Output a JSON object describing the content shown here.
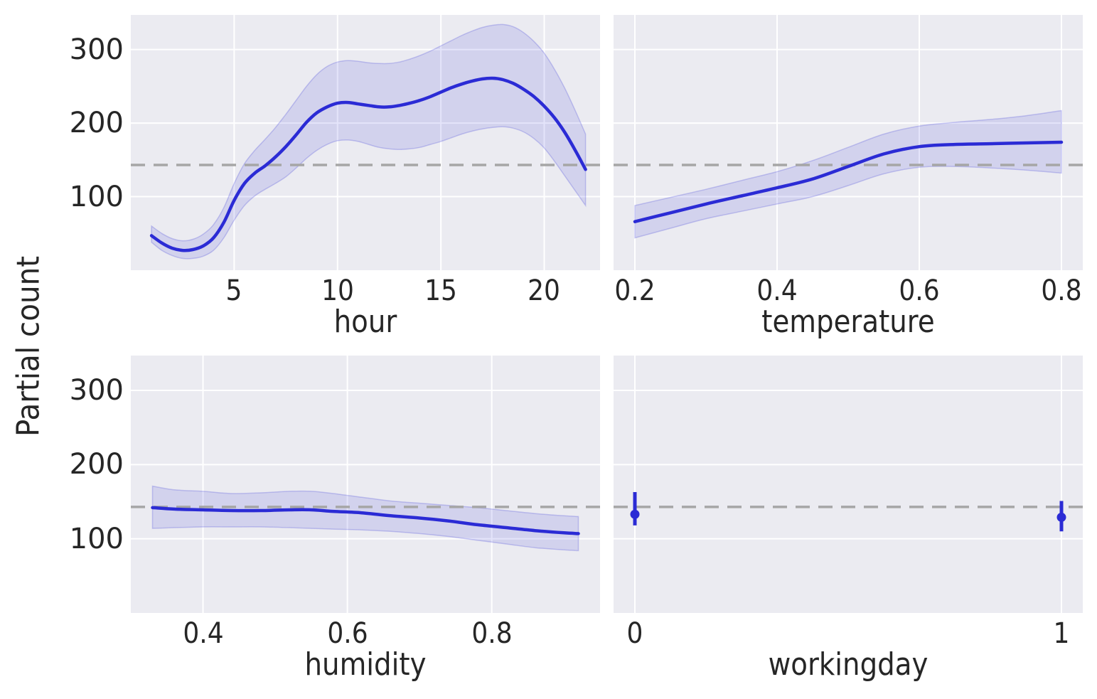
{
  "figure": {
    "ylabel": "Partial count",
    "background": "#ffffff",
    "axes_background": "#ebebf1",
    "gridline_color": "#ffffff",
    "line_color": "#2b2bd5",
    "band_fill": "rgba(43,43,213,0.13)",
    "band_edge": "rgba(43,43,213,0.22)",
    "baseline_color": "#a6a6a6",
    "text_color": "#262626",
    "baseline_value": 143
  },
  "chart_data": [
    {
      "type": "line",
      "xlabel": "hour",
      "ylabel": "Partial count",
      "grid": true,
      "xlim": [
        0,
        22.7
      ],
      "ylim": [
        0,
        347
      ],
      "baseline": 143,
      "xticks": {
        "values": [
          5,
          10,
          15,
          20
        ],
        "labels": [
          "5",
          "10",
          "15",
          "20"
        ]
      },
      "yticks": {
        "values": [
          100,
          200,
          300
        ],
        "labels": [
          "100",
          "200",
          "300"
        ],
        "show_labels": true
      },
      "x": [
        1,
        1.5,
        2,
        2.5,
        3,
        3.5,
        4,
        4.5,
        5,
        5.5,
        6,
        6.5,
        7,
        7.5,
        8,
        8.5,
        9,
        9.5,
        10,
        10.5,
        11,
        11.5,
        12,
        12.5,
        13,
        13.5,
        14,
        14.5,
        15,
        15.5,
        16,
        16.5,
        17,
        17.5,
        18,
        18.5,
        19,
        19.5,
        20,
        20.5,
        21,
        21.5,
        22
      ],
      "y": [
        47,
        37,
        30,
        27,
        28,
        33,
        44,
        65,
        95,
        118,
        132,
        142,
        154,
        168,
        184,
        201,
        214,
        222,
        227,
        228,
        226,
        224,
        222,
        222,
        224,
        227,
        231,
        236,
        242,
        248,
        253,
        257,
        260,
        261,
        259,
        254,
        246,
        236,
        223,
        207,
        187,
        163,
        137
      ],
      "y_hi": [
        60,
        50,
        43,
        40,
        42,
        49,
        62,
        85,
        118,
        145,
        163,
        178,
        194,
        212,
        231,
        250,
        266,
        277,
        283,
        285,
        284,
        282,
        281,
        281,
        283,
        287,
        292,
        298,
        305,
        312,
        319,
        325,
        330,
        333,
        334,
        331,
        323,
        311,
        295,
        273,
        247,
        217,
        185
      ],
      "y_lo": [
        38,
        27,
        20,
        16,
        16,
        19,
        27,
        44,
        68,
        88,
        101,
        110,
        118,
        127,
        139,
        152,
        163,
        171,
        176,
        177,
        175,
        171,
        167,
        165,
        164,
        165,
        167,
        171,
        175,
        180,
        185,
        189,
        192,
        194,
        195,
        193,
        188,
        179,
        166,
        148,
        128,
        108,
        88
      ]
    },
    {
      "type": "line",
      "xlabel": "temperature",
      "ylabel": "Partial count",
      "grid": true,
      "xlim": [
        0.17,
        0.83
      ],
      "ylim": [
        0,
        347
      ],
      "baseline": 143,
      "xticks": {
        "values": [
          0.2,
          0.4,
          0.6,
          0.8
        ],
        "labels": [
          "0.2",
          "0.4",
          "0.6",
          "0.8"
        ]
      },
      "yticks": {
        "values": [
          100,
          200,
          300
        ],
        "labels": [
          "100",
          "200",
          "300"
        ],
        "show_labels": false
      },
      "x": [
        0.2,
        0.25,
        0.3,
        0.35,
        0.4,
        0.45,
        0.5,
        0.55,
        0.6,
        0.65,
        0.7,
        0.75,
        0.8
      ],
      "y": [
        66,
        78,
        90,
        101,
        112,
        124,
        141,
        158,
        168,
        171,
        172,
        173,
        174
      ],
      "y_hi": [
        88,
        99,
        110,
        122,
        134,
        149,
        167,
        185,
        196,
        201,
        205,
        210,
        217
      ],
      "y_lo": [
        44,
        57,
        70,
        80,
        90,
        100,
        115,
        131,
        140,
        141,
        139,
        136,
        132
      ]
    },
    {
      "type": "line",
      "xlabel": "humidity",
      "ylabel": "Partial count",
      "grid": true,
      "xlim": [
        0.3,
        0.95
      ],
      "ylim": [
        0,
        347
      ],
      "baseline": 143,
      "xticks": {
        "values": [
          0.4,
          0.6,
          0.8
        ],
        "labels": [
          "0.4",
          "0.6",
          "0.8"
        ]
      },
      "yticks": {
        "values": [
          100,
          200,
          300
        ],
        "labels": [
          "100",
          "200",
          "300"
        ],
        "show_labels": true
      },
      "x": [
        0.33,
        0.36,
        0.4,
        0.44,
        0.48,
        0.52,
        0.55,
        0.58,
        0.62,
        0.66,
        0.7,
        0.74,
        0.78,
        0.82,
        0.86,
        0.9,
        0.92
      ],
      "y": [
        142,
        140,
        139,
        138,
        138,
        139,
        139,
        137,
        135,
        131,
        128,
        124,
        119,
        115,
        111,
        108,
        107
      ],
      "y_hi": [
        171,
        166,
        164,
        161,
        162,
        164,
        164,
        161,
        156,
        151,
        148,
        145,
        142,
        138,
        134,
        131,
        130
      ],
      "y_lo": [
        114,
        115,
        116,
        116,
        116,
        115,
        114,
        113,
        112,
        110,
        107,
        103,
        98,
        93,
        88,
        85,
        84
      ]
    },
    {
      "type": "scatter-errorbar",
      "xlabel": "workingday",
      "ylabel": "Partial count",
      "grid": true,
      "xlim": [
        -0.05,
        1.05
      ],
      "ylim": [
        0,
        347
      ],
      "baseline": 143,
      "xticks": {
        "values": [
          0,
          1
        ],
        "labels": [
          "0",
          "1"
        ]
      },
      "yticks": {
        "values": [
          100,
          200,
          300
        ],
        "labels": [
          "100",
          "200",
          "300"
        ],
        "show_labels": false
      },
      "points": [
        {
          "x": 0,
          "y": 133,
          "lo": 118,
          "hi": 163
        },
        {
          "x": 1,
          "y": 129,
          "lo": 110,
          "hi": 151
        }
      ]
    }
  ]
}
